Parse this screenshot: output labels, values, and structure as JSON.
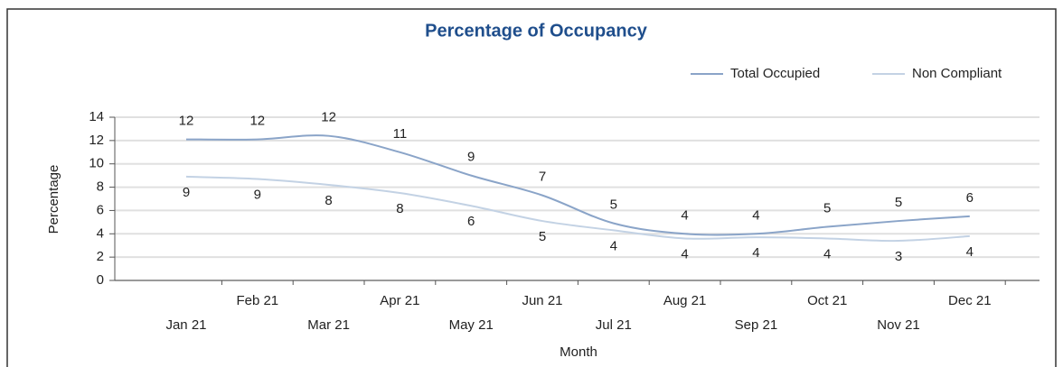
{
  "chart_data": {
    "type": "line",
    "title": "Percentage of Occupancy",
    "x_label": "Month",
    "y_label": "Percentage",
    "categories": [
      "Jan 21",
      "Feb 21",
      "Mar 21",
      "Apr 21",
      "May 21",
      "Jun 21",
      "Jul 21",
      "Aug 21",
      "Sep 21",
      "Oct 21",
      "Nov 21",
      "Dec 21"
    ],
    "series": [
      {
        "name": "Total Occupied",
        "color": "#8aa4c8",
        "values": [
          12.1,
          12.1,
          12.4,
          11.0,
          9.0,
          7.3,
          4.9,
          4.0,
          4.0,
          4.6,
          5.1,
          5.5
        ],
        "value_labels": [
          "12",
          "12",
          "12",
          "11",
          "9",
          "7",
          "5",
          "4",
          "4",
          "5",
          "5",
          "6"
        ]
      },
      {
        "name": "Non Compliant",
        "color": "#c3d2e4",
        "values": [
          8.9,
          8.7,
          8.2,
          7.5,
          6.4,
          5.1,
          4.3,
          3.6,
          3.7,
          3.6,
          3.4,
          3.8
        ],
        "value_labels": [
          "9",
          "9",
          "8",
          "8",
          "6",
          "5",
          "4",
          "4",
          "4",
          "4",
          "3",
          "4"
        ]
      }
    ],
    "ylim": [
      0,
      14
    ],
    "yticks": [
      0,
      2,
      4,
      6,
      8,
      10,
      12,
      14
    ],
    "grid": true,
    "legend": "top-right"
  }
}
